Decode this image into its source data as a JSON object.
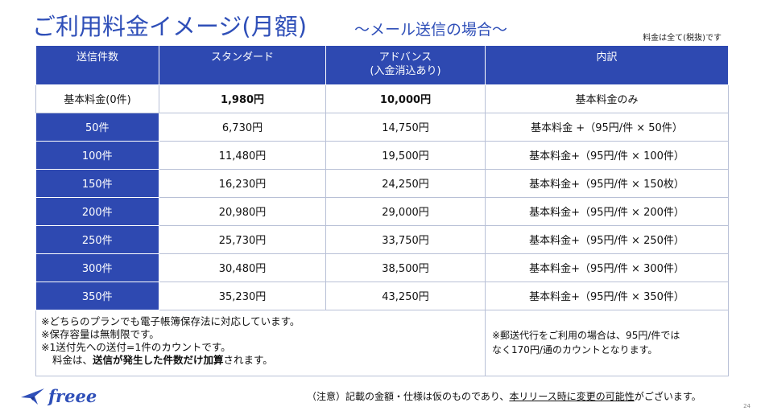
{
  "header": {
    "title": "ご利用料金イメージ(月額)",
    "subtitle": "〜メール送信の場合〜",
    "tax_note": "料金は全て(税抜)です"
  },
  "table": {
    "columns": [
      "送信件数",
      "スタンダード",
      "アドバンス",
      "(入金消込あり)",
      "内訳"
    ],
    "rows": [
      {
        "count": "基本料金(0件)",
        "standard": "1,980円",
        "advance": "10,000円",
        "breakdown": "基本料金のみ"
      },
      {
        "count": "50件",
        "standard": "6,730円",
        "advance": "14,750円",
        "breakdown": "基本料金 +（95円/件 × 50件）"
      },
      {
        "count": "100件",
        "standard": "11,480円",
        "advance": "19,500円",
        "breakdown": "基本料金+（95円/件 × 100件）"
      },
      {
        "count": "150件",
        "standard": "16,230円",
        "advance": "24,250円",
        "breakdown": "基本料金+（95円/件 × 150枚）"
      },
      {
        "count": "200件",
        "standard": "20,980円",
        "advance": "29,000円",
        "breakdown": "基本料金+（95円/件 × 200件）"
      },
      {
        "count": "250件",
        "standard": "25,730円",
        "advance": "33,750円",
        "breakdown": "基本料金+（95円/件 × 250件）"
      },
      {
        "count": "300件",
        "standard": "30,480円",
        "advance": "38,500円",
        "breakdown": "基本料金+（95円/件 × 300件）"
      },
      {
        "count": "350件",
        "standard": "35,230円",
        "advance": "43,250円",
        "breakdown": "基本料金+（95円/件 × 350件）"
      }
    ]
  },
  "notes_left": {
    "line1": "※どちらのプランでも電子帳簿保存法に対応しています。",
    "line2": "※保存容量は無制限です。",
    "line3": "※1送付先への送付=1件のカウントです。",
    "line4_a": "料金は、",
    "line4_b": "送信が発生した件数だけ加算",
    "line4_c": "されます。"
  },
  "notes_right": {
    "line1": "※郵送代行をご利用の場合は、95円/件では",
    "line2": "なく170円/通のカウントとなります。"
  },
  "footer": {
    "note_a": "（注意）記載の金額・仕様は仮のものであり、",
    "note_b": "本リリース時に変更の可能性",
    "note_c": "がございます。",
    "logo_text": "freee",
    "page_number": "24"
  },
  "colors": {
    "accent": "#2e49b1",
    "title": "#2f4fb8"
  },
  "icons": {
    "logo": "freee-bird-icon"
  }
}
